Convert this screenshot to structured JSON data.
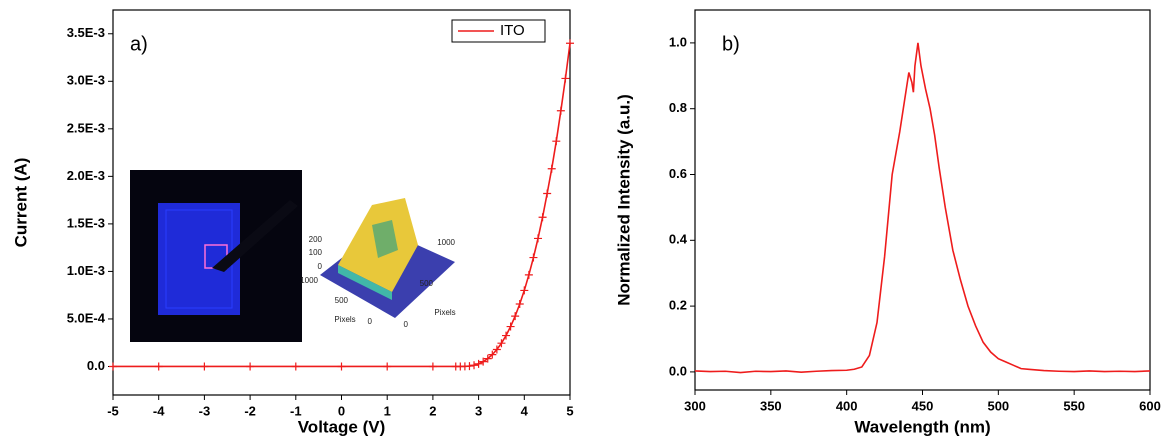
{
  "chart_data": [
    {
      "type": "line",
      "x_label": "Voltage (V)",
      "y_label": "Current (A)",
      "annotation": "a)",
      "x": [
        -5,
        -4,
        -3,
        -2,
        -1,
        0,
        1,
        2,
        2.5,
        2.6,
        2.7,
        2.8,
        2.9,
        3.0,
        3.1,
        3.2,
        3.3,
        3.4,
        3.5,
        3.6,
        3.7,
        3.8,
        3.9,
        4.0,
        4.1,
        4.2,
        4.3,
        4.4,
        4.5,
        4.6,
        4.7,
        4.8,
        4.9,
        5.0
      ],
      "series": [
        {
          "name": "ITO",
          "color": "#ee1c1c",
          "marker": "+",
          "values": [
            0,
            0,
            0,
            0,
            0,
            0,
            0,
            0,
            0,
            0,
            1e-06,
            4.4e-06,
            1.29e-05,
            2.8e-05,
            5.07e-05,
            8.26e-05,
            0.000125,
            0.000179,
            0.000245,
            0.000325,
            0.00042,
            0.00053,
            0.000657,
            0.0008,
            0.000964,
            0.001146,
            0.001347,
            0.00157,
            0.00182,
            0.00208,
            0.00237,
            0.00269,
            0.00303,
            0.0034
          ]
        }
      ],
      "legend": "upper right",
      "xlim": [
        -5,
        5
      ],
      "xticks": [
        -5,
        -4,
        -3,
        -2,
        -1,
        0,
        1,
        2,
        3,
        4,
        5
      ],
      "ylim": [
        -0.0003,
        0.00375
      ],
      "yticks": [
        {
          "value": 0,
          "label": "0.0"
        },
        {
          "value": 0.0005,
          "label": "5.0E-4"
        },
        {
          "value": 0.001,
          "label": "1.0E-3"
        },
        {
          "value": 0.0015,
          "label": "1.5E-3"
        },
        {
          "value": 0.002,
          "label": "2.0E-3"
        },
        {
          "value": 0.0025,
          "label": "2.5E-3"
        },
        {
          "value": 0.003,
          "label": "3.0E-3"
        },
        {
          "value": 0.0035,
          "label": "3.5E-3"
        }
      ],
      "inset_labels": {
        "z_ticks": [
          "200",
          "100",
          "0"
        ],
        "x_ticks": [
          "1000",
          "500",
          "0"
        ],
        "x_label": "Pixels",
        "y_ticks": [
          "1000",
          "500",
          "0"
        ],
        "y_label": "Pixels"
      }
    },
    {
      "type": "line",
      "x_label": "Wavelength (nm)",
      "y_label": "Normalized Intensity (a.u.)",
      "annotation": "b)",
      "x": [
        300,
        310,
        320,
        330,
        340,
        350,
        360,
        370,
        380,
        390,
        400,
        405,
        410,
        415,
        420,
        425,
        430,
        435,
        438,
        441,
        443,
        444,
        445,
        447,
        449,
        452,
        455,
        458,
        461,
        465,
        470,
        475,
        480,
        485,
        490,
        495,
        500,
        505,
        510,
        515,
        520,
        530,
        540,
        550,
        560,
        570,
        580,
        590,
        600
      ],
      "values": [
        0.003,
        0.001,
        0.002,
        -0.002,
        0.002,
        0.001,
        0.003,
        -0.001,
        0.002,
        0.004,
        0.005,
        0.008,
        0.015,
        0.05,
        0.15,
        0.35,
        0.6,
        0.73,
        0.82,
        0.91,
        0.88,
        0.85,
        0.93,
        1.0,
        0.93,
        0.86,
        0.8,
        0.72,
        0.62,
        0.5,
        0.37,
        0.28,
        0.2,
        0.14,
        0.09,
        0.06,
        0.04,
        0.03,
        0.02,
        0.01,
        0.008,
        0.004,
        0.002,
        0.001,
        0.003,
        0.001,
        0.002,
        0.001,
        0.003
      ],
      "color": "#ee1c1c",
      "xlim": [
        300,
        600
      ],
      "xticks": [
        300,
        350,
        400,
        450,
        500,
        550,
        600
      ],
      "ylim": [
        -0.055,
        1.1
      ],
      "yticks": [
        {
          "value": 0,
          "label": "0.0"
        },
        0.2,
        0.4,
        0.6,
        0.8,
        {
          "value": 1,
          "label": "1.0"
        }
      ]
    }
  ]
}
